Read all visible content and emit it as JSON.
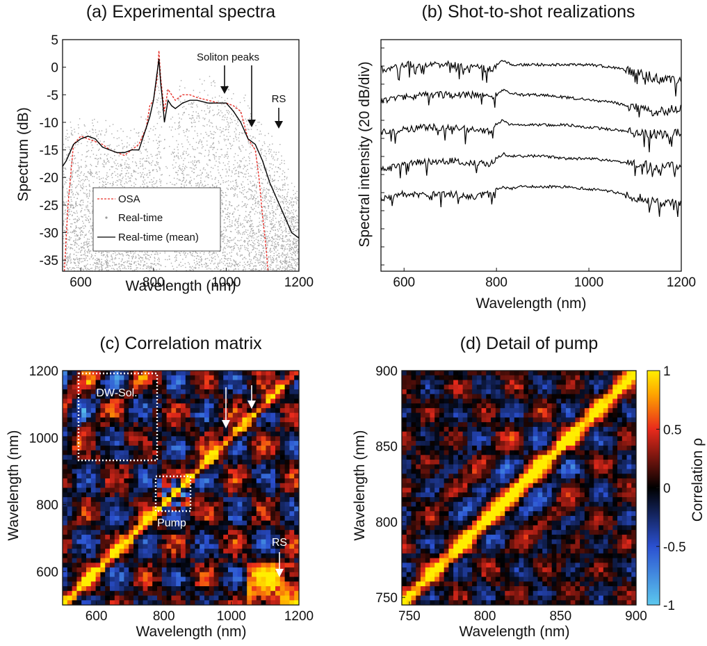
{
  "panels": [
    {
      "id": "a",
      "title": "(a) Experimental spectra",
      "xlabel": "Wavelength (nm)",
      "ylabel": "Spectrum (dB)",
      "xticks": [
        "600",
        "800",
        "1000",
        "1200"
      ],
      "yticks": [
        "5",
        "0",
        "-5",
        "-10",
        "-15",
        "-20",
        "-25",
        "-30",
        "-35"
      ],
      "annotations": [
        "Soliton peaks",
        "RS"
      ],
      "legend": [
        "OSA",
        "Real-time",
        "Real-time (mean)"
      ]
    },
    {
      "id": "b",
      "title": "(b) Shot-to-shot realizations",
      "xlabel": "Wavelength (nm)",
      "ylabel": "Spectral intensity (20 dB/div)",
      "xticks": [
        "600",
        "800",
        "1000",
        "1200"
      ]
    },
    {
      "id": "c",
      "title": "(c) Correlation matrix",
      "xlabel": "Wavelength (nm)",
      "ylabel": "Wavelength (nm)",
      "xticks": [
        "600",
        "800",
        "1000",
        "1200"
      ],
      "yticks": [
        "1200",
        "1000",
        "800",
        "600"
      ],
      "annotations": [
        "DW-Sol.",
        "Pump",
        "RS"
      ]
    },
    {
      "id": "d",
      "title": "(d) Detail of pump",
      "xlabel": "Wavelength (nm)",
      "ylabel": "Wavelength (nm)",
      "xticks": [
        "750",
        "800",
        "850",
        "900"
      ],
      "yticks": [
        "900",
        "850",
        "800",
        "750"
      ],
      "colorbar_label": "Correlation ρ",
      "colorbar_ticks": [
        "1",
        "0.5",
        "0",
        "-0.5",
        "-1"
      ]
    }
  ],
  "chart_data": [
    {
      "type": "line",
      "panel": "a",
      "title": "(a) Experimental spectra",
      "xlabel": "Wavelength (nm)",
      "ylabel": "Spectrum (dB)",
      "xlim": [
        550,
        1200
      ],
      "ylim": [
        -37,
        5
      ],
      "series": [
        {
          "name": "OSA",
          "style": "dashed",
          "color": "#e8312a",
          "x": [
            555,
            565,
            580,
            600,
            620,
            640,
            660,
            680,
            700,
            720,
            740,
            760,
            780,
            790,
            800,
            810,
            815,
            820,
            825,
            830,
            840,
            850,
            860,
            880,
            900,
            920,
            950,
            980,
            1000,
            1020,
            1040,
            1060,
            1080,
            1090,
            1100,
            1110,
            1115
          ],
          "y": [
            -37,
            -25,
            -14,
            -12.5,
            -13,
            -13.5,
            -14,
            -15,
            -15.5,
            -16,
            -15,
            -14,
            -11,
            -7,
            -6,
            -2,
            3,
            -2,
            -5,
            -8,
            -4,
            -5,
            -6,
            -5,
            -5,
            -5.5,
            -6,
            -6.5,
            -6.5,
            -7,
            -8,
            -13,
            -15,
            -20,
            -27,
            -33,
            -37
          ]
        },
        {
          "name": "Real-time",
          "style": "dots",
          "color": "#a9a9a9",
          "x": [
            555,
            600,
            650,
            700,
            750,
            790,
            810,
            820,
            840,
            860,
            880,
            900,
            950,
            1000,
            1050,
            1080,
            1100,
            1140,
            1180,
            1200
          ],
          "y_upper": [
            -10,
            -9,
            -9,
            -10,
            -10,
            -7,
            1,
            0,
            -4,
            -3,
            -2,
            -1,
            -1,
            -2,
            -3,
            -8,
            -10,
            -12,
            -20,
            -22
          ],
          "y_lower": [
            -37,
            -37,
            -37,
            -37,
            -37,
            -37,
            -37,
            -37,
            -37,
            -37,
            -37,
            -37,
            -37,
            -37,
            -37,
            -37,
            -37,
            -37,
            -37,
            -37
          ]
        },
        {
          "name": "Real-time (mean)",
          "style": "solid",
          "color": "#000000",
          "x": [
            550,
            560,
            580,
            600,
            620,
            640,
            660,
            680,
            700,
            720,
            740,
            760,
            780,
            790,
            800,
            810,
            815,
            820,
            825,
            830,
            840,
            850,
            860,
            880,
            900,
            920,
            950,
            980,
            1000,
            1020,
            1040,
            1060,
            1080,
            1100,
            1120,
            1140,
            1160,
            1180,
            1200
          ],
          "y": [
            -18,
            -17,
            -14,
            -13,
            -12.5,
            -13,
            -14.5,
            -15,
            -15.5,
            -15.5,
            -15,
            -15,
            -11,
            -9,
            -6,
            -1,
            1.5,
            -3,
            -6,
            -10,
            -6,
            -7,
            -7.5,
            -6.5,
            -6,
            -6,
            -6.5,
            -6.5,
            -6.5,
            -8,
            -10,
            -13,
            -14,
            -17,
            -21,
            -24,
            -27,
            -30,
            -31
          ]
        }
      ]
    },
    {
      "type": "line",
      "panel": "b",
      "title": "(b) Shot-to-shot realizations",
      "xlabel": "Wavelength (nm)",
      "ylabel": "Spectral intensity (20 dB/div)",
      "xlim": [
        550,
        1200
      ],
      "series": [
        {
          "offset_div": 4,
          "x": [
            550,
            600,
            650,
            700,
            750,
            790,
            800,
            815,
            830,
            850,
            900,
            950,
            1000,
            1050,
            1100,
            1150,
            1200
          ],
          "y": [
            0,
            1,
            1,
            1,
            0.5,
            0,
            1,
            2,
            1,
            1,
            1,
            1,
            1,
            0.5,
            -0.5,
            -2,
            -2
          ]
        },
        {
          "offset_div": 3,
          "x": [
            550,
            600,
            650,
            700,
            750,
            790,
            800,
            815,
            830,
            850,
            900,
            950,
            1000,
            1050,
            1100,
            1150,
            1200
          ],
          "y": [
            -1,
            0,
            0.5,
            0.5,
            0.5,
            0,
            0.5,
            1.5,
            1,
            0.5,
            0.5,
            0,
            -0.5,
            -1,
            -2,
            -3,
            -2
          ]
        },
        {
          "offset_div": 2,
          "x": [
            550,
            600,
            650,
            700,
            750,
            790,
            800,
            815,
            830,
            850,
            900,
            950,
            1000,
            1050,
            1100,
            1150,
            1200
          ],
          "y": [
            -1,
            -0.5,
            0,
            0,
            -0.5,
            -1,
            0.5,
            1.5,
            0.5,
            0.5,
            0.5,
            0.5,
            0,
            -0.5,
            -1,
            -1.5,
            -1
          ]
        },
        {
          "offset_div": 1,
          "x": [
            550,
            600,
            650,
            700,
            750,
            790,
            800,
            815,
            830,
            850,
            900,
            950,
            1000,
            1050,
            1100,
            1150,
            1200
          ],
          "y": [
            -2,
            -1,
            -0.5,
            -0.5,
            -1,
            -1,
            0,
            1,
            0.5,
            0.5,
            0.5,
            0,
            0,
            -0.5,
            -1,
            -2,
            -1.5
          ]
        },
        {
          "offset_div": 0,
          "x": [
            550,
            600,
            650,
            700,
            750,
            790,
            800,
            815,
            830,
            850,
            900,
            950,
            1000,
            1050,
            1100,
            1150,
            1200
          ],
          "y": [
            -2,
            -1,
            -1,
            -1,
            -1.5,
            -1,
            0,
            0.5,
            0,
            0.5,
            0.5,
            0.5,
            0,
            -0.5,
            -1.5,
            -3,
            -3
          ]
        }
      ]
    },
    {
      "type": "heatmap",
      "panel": "c",
      "title": "(c) Correlation matrix",
      "xlabel": "Wavelength (nm)",
      "ylabel": "Wavelength (nm)",
      "xlim": [
        500,
        1200
      ],
      "ylim": [
        500,
        1200
      ],
      "value_range": [
        -1,
        1
      ],
      "features": [
        {
          "label": "DW-Sol.",
          "x_range": [
            570,
            780
          ],
          "y_range": [
            960,
            1180
          ]
        },
        {
          "label": "Pump",
          "x_range": [
            780,
            880
          ],
          "y_range": [
            780,
            880
          ]
        },
        {
          "label": "RS",
          "x_range": [
            1100,
            1180
          ],
          "y_range": [
            560,
            620
          ]
        }
      ]
    },
    {
      "type": "heatmap",
      "panel": "d",
      "title": "(d) Detail of pump",
      "xlabel": "Wavelength (nm)",
      "ylabel": "Wavelength (nm)",
      "xlim": [
        745,
        900
      ],
      "ylim": [
        745,
        900
      ],
      "value_range": [
        -1,
        1
      ],
      "colorbar": {
        "label": "Correlation ρ",
        "ticks": [
          1,
          0.5,
          0,
          -0.5,
          -1
        ]
      }
    }
  ]
}
